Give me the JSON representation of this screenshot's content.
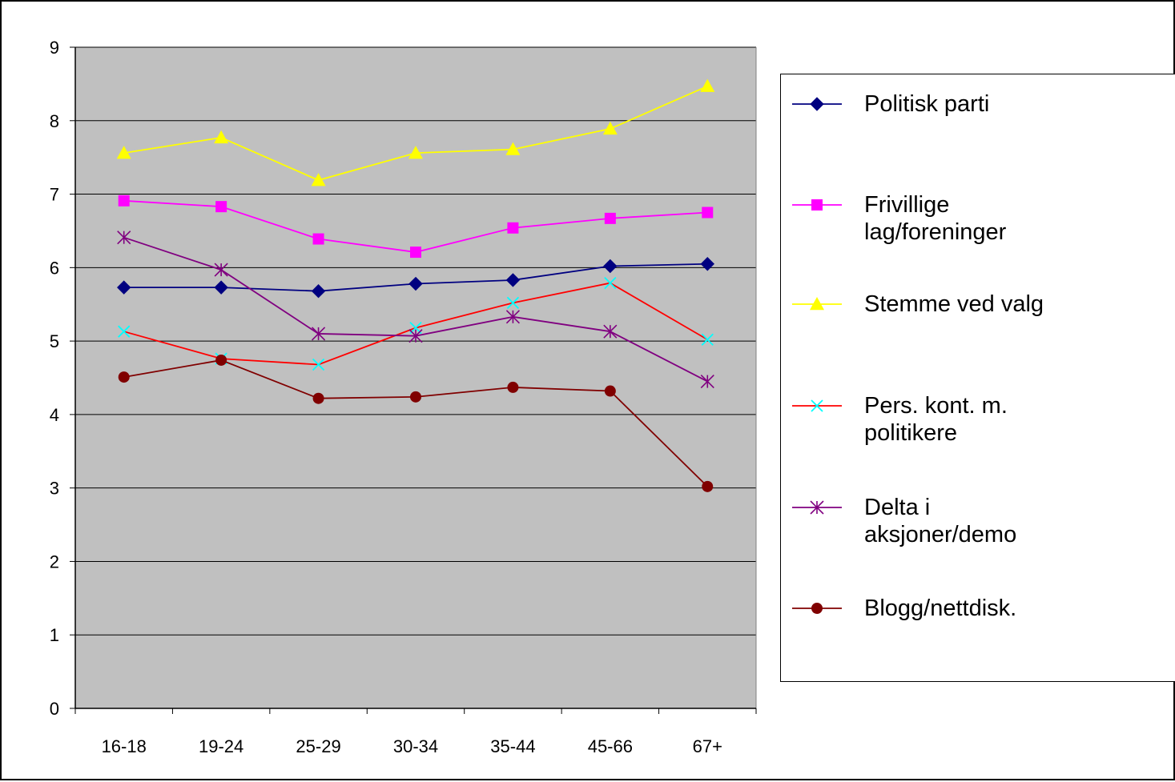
{
  "chart_data": {
    "type": "line",
    "title": "",
    "xlabel": "",
    "ylabel": "",
    "categories": [
      "16-18",
      "19-24",
      "25-29",
      "30-34",
      "35-44",
      "45-66",
      "67+"
    ],
    "ylim": [
      0,
      9
    ],
    "yticks": [
      "0",
      "1",
      "2",
      "3",
      "4",
      "5",
      "6",
      "7",
      "8",
      "9"
    ],
    "grid": true,
    "plot_background": "#c0c0c0",
    "legend_position": "right",
    "series": [
      {
        "name": "Politisk parti",
        "color": "#000080",
        "marker": "diamond",
        "values": [
          5.73,
          5.73,
          5.68,
          5.78,
          5.83,
          6.02,
          6.05
        ]
      },
      {
        "name": "Frivillige lag/foreninger",
        "color": "#ff00ff",
        "marker": "square",
        "values": [
          6.91,
          6.83,
          6.39,
          6.21,
          6.54,
          6.67,
          6.75
        ]
      },
      {
        "name": "Stemme ved valg",
        "color": "#ffff00",
        "marker": "triangle",
        "values": [
          7.56,
          7.77,
          7.19,
          7.56,
          7.61,
          7.89,
          8.47
        ]
      },
      {
        "name": "Pers. kont. m. politikere",
        "color": "#ff0000",
        "marker": "x",
        "marker_color": "#00ffff",
        "values": [
          5.13,
          4.76,
          4.68,
          5.18,
          5.52,
          5.79,
          5.02
        ]
      },
      {
        "name": "Delta i aksjoner/demo",
        "color": "#800080",
        "marker": "star",
        "values": [
          6.41,
          5.97,
          5.1,
          5.07,
          5.33,
          5.13,
          4.45
        ]
      },
      {
        "name": "Blogg/nettdisk.",
        "color": "#800000",
        "marker": "circle",
        "values": [
          4.51,
          4.74,
          4.22,
          4.24,
          4.37,
          4.32,
          3.02
        ]
      }
    ]
  }
}
